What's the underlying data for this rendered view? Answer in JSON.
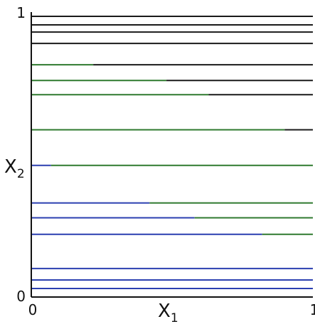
{
  "chart_data": {
    "type": "line",
    "xlabel": "X",
    "xlabel_sub": "1",
    "ylabel": "X",
    "ylabel_sub": "2",
    "xlim": [
      0,
      1
    ],
    "ylim": [
      0,
      1
    ],
    "x_ticks": [
      "0",
      "1"
    ],
    "y_ticks": [
      "0",
      "1"
    ],
    "grid": false,
    "colors": {
      "black": "#1a1a1a",
      "green": "#2f7a2f",
      "blue": "#2b3fb0",
      "axis": "#111111"
    },
    "lines": [
      {
        "y": 0.985,
        "segments": [
          {
            "x0": 0,
            "x1": 1,
            "color": "black"
          }
        ]
      },
      {
        "y": 0.955,
        "segments": [
          {
            "x0": 0,
            "x1": 1,
            "color": "black"
          }
        ]
      },
      {
        "y": 0.93,
        "segments": [
          {
            "x0": 0,
            "x1": 1,
            "color": "black"
          }
        ]
      },
      {
        "y": 0.89,
        "segments": [
          {
            "x0": 0,
            "x1": 1,
            "color": "black"
          }
        ]
      },
      {
        "y": 0.815,
        "segments": [
          {
            "x0": 0,
            "x1": 0.22,
            "color": "green"
          },
          {
            "x0": 0.22,
            "x1": 1,
            "color": "black"
          }
        ]
      },
      {
        "y": 0.76,
        "segments": [
          {
            "x0": 0,
            "x1": 0.48,
            "color": "green"
          },
          {
            "x0": 0.48,
            "x1": 1,
            "color": "black"
          }
        ]
      },
      {
        "y": 0.71,
        "segments": [
          {
            "x0": 0,
            "x1": 0.63,
            "color": "green"
          },
          {
            "x0": 0.63,
            "x1": 1,
            "color": "black"
          }
        ]
      },
      {
        "y": 0.587,
        "segments": [
          {
            "x0": 0,
            "x1": 0.9,
            "color": "green"
          },
          {
            "x0": 0.9,
            "x1": 1,
            "color": "black"
          }
        ]
      },
      {
        "y": 0.462,
        "segments": [
          {
            "x0": 0,
            "x1": 0.07,
            "color": "blue"
          },
          {
            "x0": 0.07,
            "x1": 1,
            "color": "green"
          }
        ]
      },
      {
        "y": 0.33,
        "segments": [
          {
            "x0": 0,
            "x1": 0.42,
            "color": "blue"
          },
          {
            "x0": 0.42,
            "x1": 1,
            "color": "green"
          }
        ]
      },
      {
        "y": 0.278,
        "segments": [
          {
            "x0": 0,
            "x1": 0.58,
            "color": "blue"
          },
          {
            "x0": 0.58,
            "x1": 1,
            "color": "green"
          }
        ]
      },
      {
        "y": 0.22,
        "segments": [
          {
            "x0": 0,
            "x1": 0.82,
            "color": "blue"
          },
          {
            "x0": 0.82,
            "x1": 1,
            "color": "green"
          }
        ]
      },
      {
        "y": 0.1,
        "segments": [
          {
            "x0": 0,
            "x1": 1,
            "color": "blue"
          }
        ]
      },
      {
        "y": 0.06,
        "segments": [
          {
            "x0": 0,
            "x1": 1,
            "color": "blue"
          }
        ]
      },
      {
        "y": 0.03,
        "segments": [
          {
            "x0": 0,
            "x1": 1,
            "color": "blue"
          }
        ]
      }
    ]
  }
}
